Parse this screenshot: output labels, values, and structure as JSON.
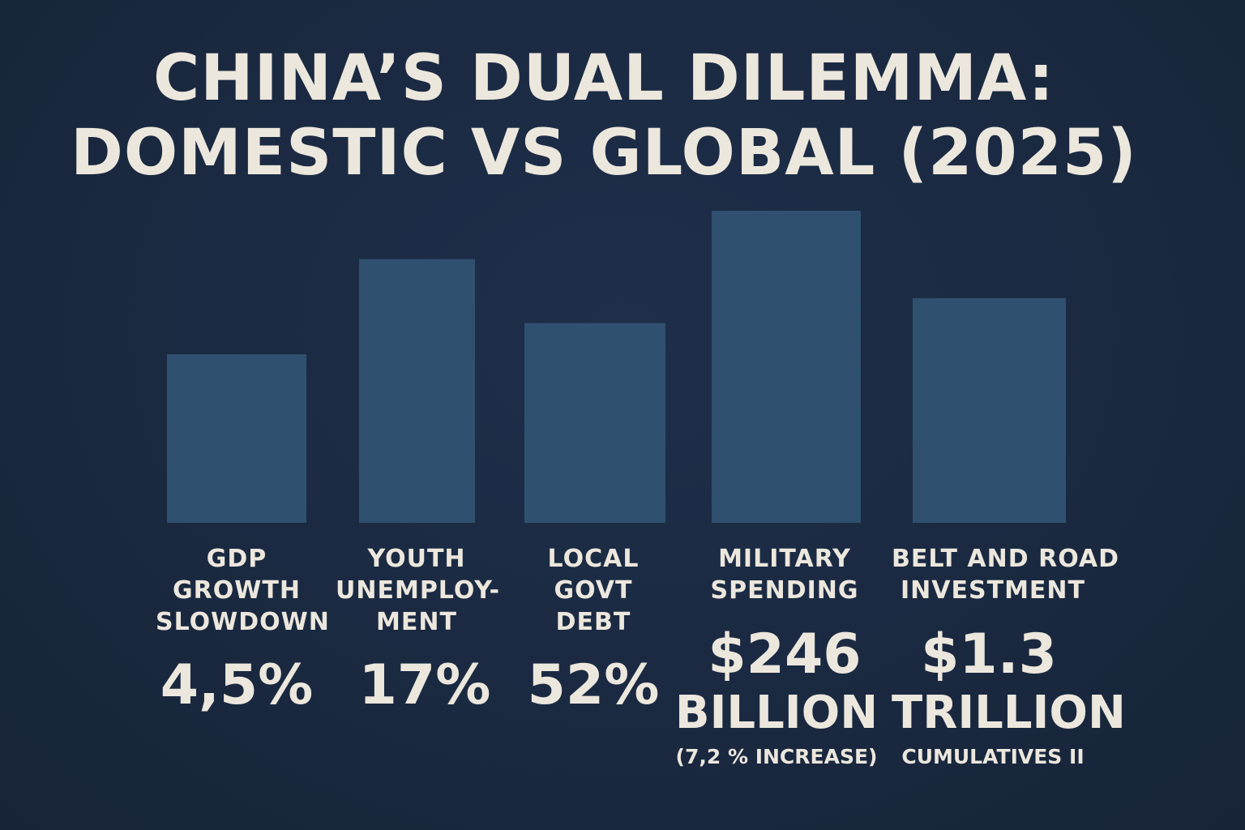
{
  "chart_data": {
    "type": "bar",
    "title_line1": "CHINA’S DUAL DILEMMA:",
    "title_line2": "DOMESTIC VS GLOBAL (2025)",
    "categories": [
      {
        "label_lines": [
          "GDP",
          "GROWTH",
          "SLOWDOWN"
        ],
        "value_lines": [
          "4,5%"
        ],
        "sub": ""
      },
      {
        "label_lines": [
          "YOUTH",
          "UNEMPLOY-",
          "MENT"
        ],
        "value_lines": [
          "17%"
        ],
        "sub": ""
      },
      {
        "label_lines": [
          "LOCAL",
          "GOVT",
          "DEBT"
        ],
        "value_lines": [
          "52%"
        ],
        "sub": ""
      },
      {
        "label_lines": [
          "MILITARY",
          "SPENDING"
        ],
        "value_lines": [
          "$246",
          "BILLION"
        ],
        "sub": "(7,2 % INCREASE)"
      },
      {
        "label_lines": [
          "BELT AND ROAD",
          "INVESTMENT"
        ],
        "value_lines": [
          "$1.3",
          "TRILLION"
        ],
        "sub": "CUMULATIVES II"
      }
    ],
    "bar_heights_relative": [
      0.54,
      0.845,
      0.64,
      1.0,
      0.72
    ],
    "axes": "none",
    "grid": false,
    "legend": "none"
  },
  "colors": {
    "background": "#1a2940",
    "bar": "#30506f",
    "text": "#ece7dd"
  }
}
